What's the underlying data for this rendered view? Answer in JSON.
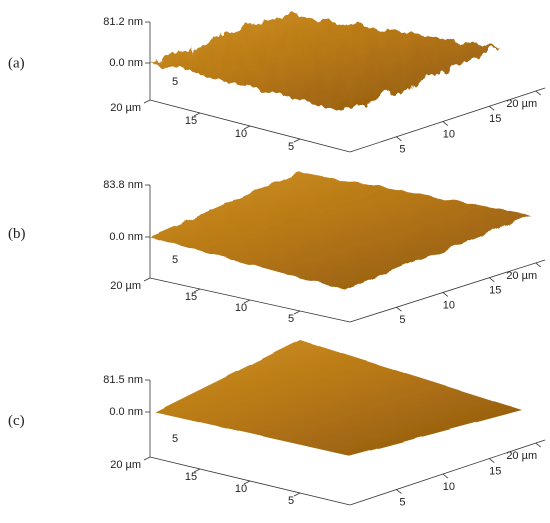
{
  "panels": [
    {
      "label": "(a)",
      "z_max": "81.2 nm",
      "z_min": "0.0 nm",
      "back_tick": "5",
      "left_axis": [
        "20 µm",
        "15",
        "10",
        "5"
      ],
      "right_axis": [
        "5",
        "10",
        "15",
        "20 µm"
      ]
    },
    {
      "label": "(b)",
      "z_max": "83.8 nm",
      "z_min": "0.0 nm",
      "back_tick": "5",
      "left_axis": [
        "20 µm",
        "15",
        "10",
        "5"
      ],
      "right_axis": [
        "5",
        "10",
        "15",
        "20 µm"
      ]
    },
    {
      "label": "(c)",
      "z_max": "81.5 nm",
      "z_min": "0.0 nm",
      "back_tick": "5",
      "left_axis": [
        "20 µm",
        "15",
        "10",
        "5"
      ],
      "right_axis": [
        "5",
        "10",
        "15",
        "20 µm"
      ]
    }
  ]
}
